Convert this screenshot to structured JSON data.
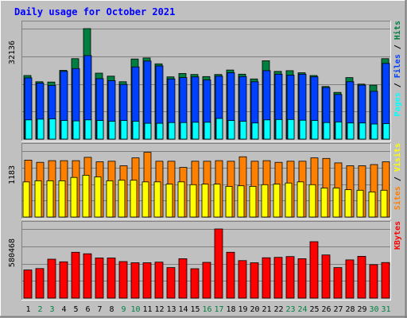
{
  "title": "Daily usage for October 2021",
  "colors": {
    "background": "#c0c0c0",
    "title": "#0000ff",
    "hits": "#008040",
    "files": "#0040ff",
    "pages": "#00ffff",
    "visits": "#ffff00",
    "sites": "#ff8000",
    "kbytes": "#ff0000",
    "weekday_label": "#000000",
    "weekend_label": "#008040"
  },
  "chart_data": {
    "type": "bar",
    "days": [
      "1",
      "2",
      "3",
      "4",
      "5",
      "6",
      "7",
      "8",
      "9",
      "10",
      "11",
      "12",
      "13",
      "14",
      "15",
      "16",
      "17",
      "18",
      "19",
      "20",
      "21",
      "22",
      "23",
      "24",
      "25",
      "26",
      "27",
      "28",
      "29",
      "30",
      "31"
    ],
    "weekend": [
      false,
      true,
      true,
      false,
      false,
      false,
      false,
      false,
      true,
      true,
      false,
      false,
      false,
      false,
      false,
      true,
      true,
      false,
      false,
      false,
      false,
      false,
      true,
      true,
      false,
      false,
      false,
      false,
      false,
      true,
      true
    ],
    "panels": [
      {
        "key": "top",
        "ytick": "32136",
        "ymax": 32136,
        "legend": [
          "Pages",
          "Files",
          "Hits"
        ],
        "series": [
          {
            "name": "Hits",
            "color": "#008040",
            "values": [
              18500,
              16700,
              16600,
              20000,
              23400,
              32136,
              19200,
              18300,
              16700,
              23300,
              23600,
              21900,
              18100,
              19100,
              18800,
              18200,
              18800,
              20100,
              18900,
              17500,
              22800,
              19700,
              19900,
              19300,
              18500,
              15300,
              13600,
              17900,
              16000,
              15700,
              23400
            ]
          },
          {
            "name": "Files",
            "color": "#0040ff",
            "values": [
              17800,
              16300,
              15600,
              19700,
              20500,
              24300,
              17600,
              17000,
              15900,
              21000,
              22700,
              21300,
              17500,
              17900,
              18100,
              17200,
              18300,
              19300,
              18200,
              16700,
              19900,
              18900,
              18600,
              18900,
              18100,
              15000,
              13000,
              16700,
              15700,
              13900,
              22000
            ]
          },
          {
            "name": "Pages",
            "color": "#00ffff",
            "values": [
              5600,
              5800,
              5900,
              5400,
              5300,
              5600,
              5400,
              5200,
              5400,
              5200,
              4600,
              4600,
              4800,
              4800,
              4900,
              4900,
              6000,
              5400,
              5200,
              4700,
              5600,
              5700,
              5700,
              5500,
              5400,
              4800,
              5000,
              4700,
              4700,
              4400,
              4500
            ]
          }
        ]
      },
      {
        "key": "middle",
        "ytick": "1183",
        "ymax": 1183,
        "legend": [
          "Sites",
          "Visits"
        ],
        "series": [
          {
            "name": "Sites",
            "color": "#ff8000",
            "values": [
              1020,
              980,
              1010,
              1010,
              1010,
              1070,
              990,
              1000,
              920,
              1060,
              1160,
              1000,
              1000,
              890,
              1000,
              1000,
              1010,
              1000,
              1080,
              1000,
              1010,
              980,
              1000,
              1000,
              1060,
              1050,
              970,
              920,
              920,
              940,
              990
            ]
          },
          {
            "name": "Visits",
            "color": "#ffff00",
            "values": [
              630,
              650,
              650,
              650,
              710,
              750,
              720,
              650,
              660,
              660,
              630,
              630,
              590,
              630,
              580,
              590,
              590,
              550,
              560,
              550,
              580,
              590,
              610,
              630,
              580,
              520,
              520,
              490,
              480,
              450,
              480
            ]
          }
        ]
      },
      {
        "key": "bottom",
        "ytick": "580468",
        "ymax": 580468,
        "legend": [
          "KBytes"
        ],
        "series": [
          {
            "name": "KBytes",
            "color": "#ff0000",
            "values": [
              236000,
              248000,
              327000,
              305000,
              385000,
              372000,
              337000,
              337000,
              307000,
              297000,
              297000,
              302000,
              256000,
              331000,
              247000,
              300000,
              580468,
              385000,
              315000,
              297000,
              339000,
              342000,
              349000,
              331000,
              474000,
              362000,
              256000,
              321000,
              351000,
              281000,
              299000
            ]
          }
        ]
      }
    ]
  }
}
